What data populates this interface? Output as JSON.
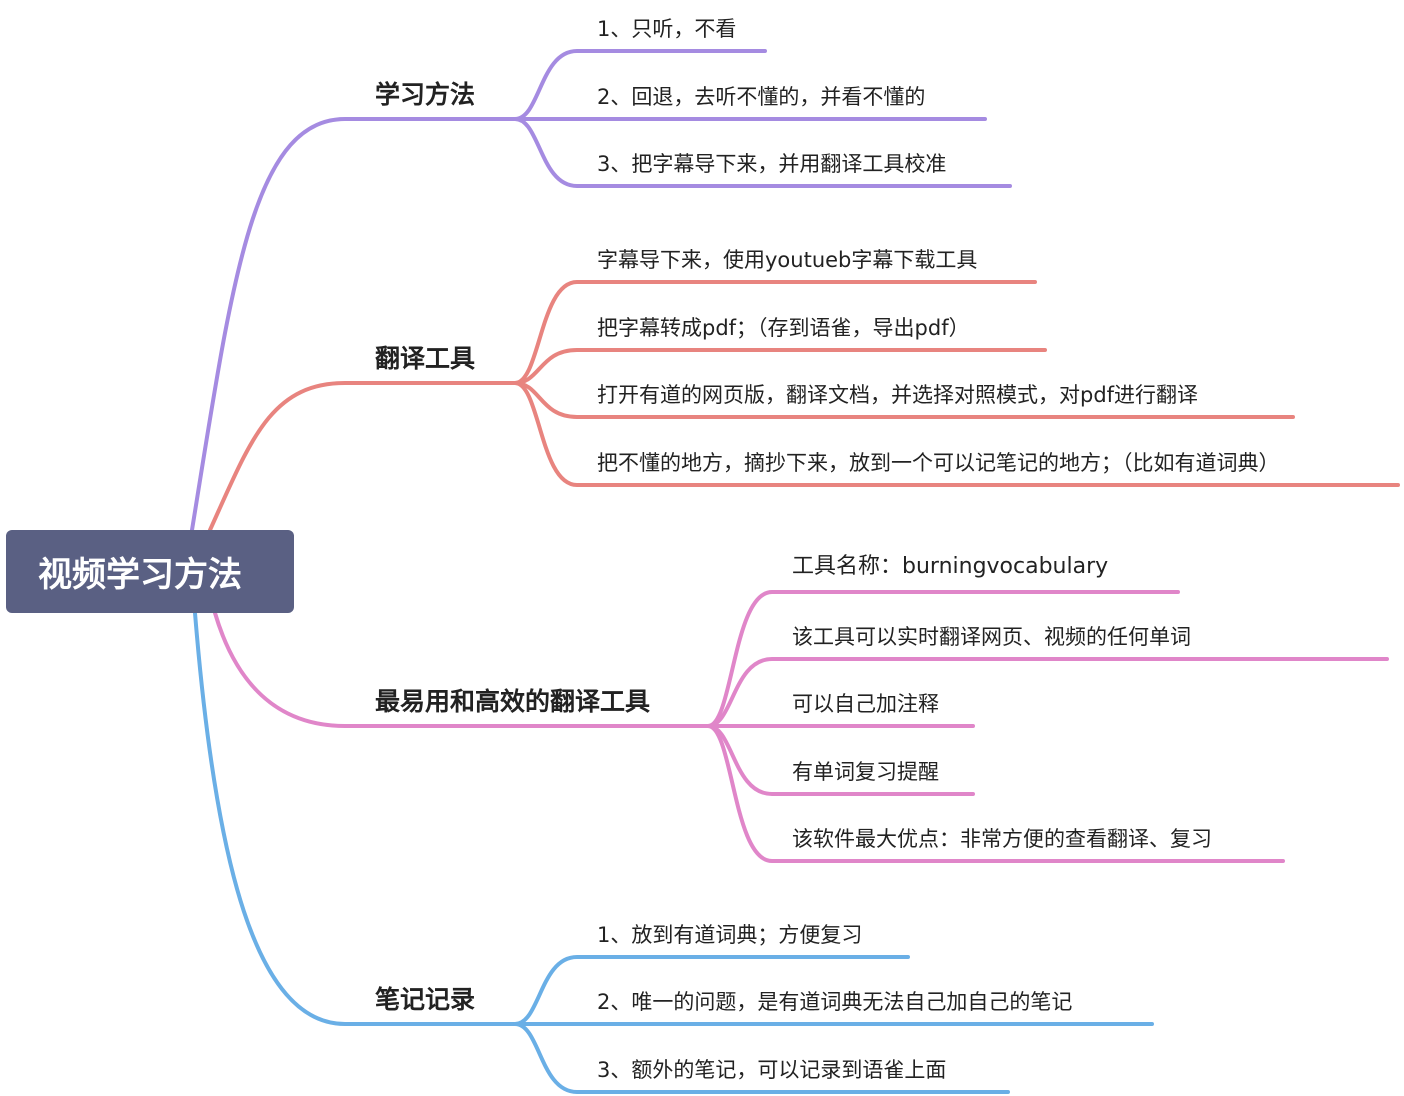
{
  "root": {
    "label": "视频学习方法",
    "color": "#5a6083"
  },
  "branches": [
    {
      "label": "学习方法",
      "color": "#a58be1",
      "children": [
        "1、只听，不看",
        "2、回退，去听不懂的，并看不懂的",
        "3、把字幕导下来，并用翻译工具校准"
      ]
    },
    {
      "label": "翻译工具",
      "color": "#e8847f",
      "children": [
        "字幕导下来，使用youtueb字幕下载工具",
        "把字幕转成pdf；（存到语雀，导出pdf）",
        "打开有道的网页版，翻译文档，并选择对照模式，对pdf进行翻译",
        "把不懂的地方，摘抄下来，放到一个可以记笔记的地方；（比如有道词典）"
      ]
    },
    {
      "label": "最易用和高效的翻译工具",
      "color": "#e086c9",
      "children": [
        "工具名称：burningvocabulary",
        "该工具可以实时翻译网页、视频的任何单词",
        "可以自己加注释",
        "有单词复习提醒",
        "该软件最大优点：非常方便的查看翻译、复习"
      ]
    },
    {
      "label": "笔记记录",
      "color": "#6aafe6",
      "children": [
        "1、放到有道词典；方便复习",
        "2、唯一的问题，是有道词典无法自己加自己的笔记",
        "3、额外的笔记，可以记录到语雀上面"
      ]
    }
  ]
}
